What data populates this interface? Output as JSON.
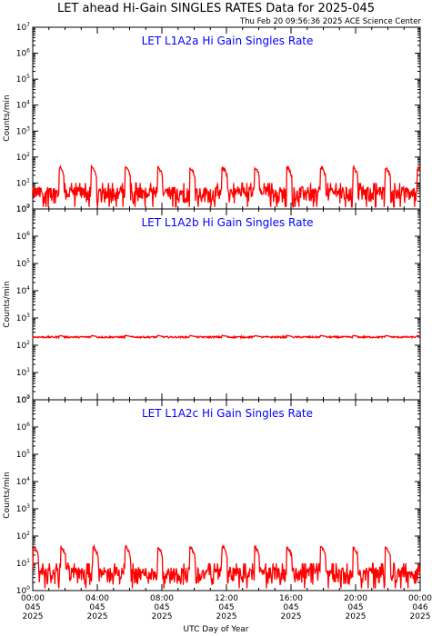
{
  "title": "LET ahead Hi-Gain SINGLES RATES Data for 2025-045",
  "timestamp": "Thu Feb 20 09:56:36 2025 ACE Science Center",
  "xlabel": "UTC Day of Year",
  "colors": {
    "data": "#ff0000",
    "title": "#0000ff",
    "axes": "#000000"
  },
  "x_ticks": [
    [
      "00:00",
      "045",
      "2025"
    ],
    [
      "04:00",
      "045",
      "2025"
    ],
    [
      "08:00",
      "045",
      "2025"
    ],
    [
      "12:00",
      "045",
      "2025"
    ],
    [
      "16:00",
      "045",
      "2025"
    ],
    [
      "20:00",
      "045",
      "2025"
    ],
    [
      "00:00",
      "046",
      "2025"
    ]
  ],
  "chart_data": [
    {
      "type": "line",
      "title": "LET L1A2a Hi Gain Singles Rate",
      "ylabel": "Counts/min",
      "yscale": "log",
      "ylim": [
        1,
        10000000
      ],
      "xlim": [
        0,
        24
      ],
      "x_unit": "hours UTC, day 045",
      "series": [
        {
          "baseline": 4,
          "spike_peak": 45,
          "spike_times": [
            1.7,
            3.7,
            5.8,
            7.8,
            9.8,
            11.8,
            13.8,
            15.8,
            17.9,
            19.9,
            21.9,
            23.9
          ]
        }
      ]
    },
    {
      "type": "line",
      "title": "LET L1A2b Hi Gain Singles Rate",
      "ylabel": "Counts/min",
      "yscale": "log",
      "ylim": [
        1,
        10000000
      ],
      "xlim": [
        0,
        24
      ],
      "x_unit": "hours UTC, day 045",
      "series": [
        {
          "baseline": 200,
          "spike_peak": 230,
          "spike_times": [
            1.7,
            3.7,
            5.8,
            7.8,
            9.8,
            11.8,
            13.8,
            15.8,
            17.9,
            19.9,
            21.9,
            23.9
          ]
        }
      ]
    },
    {
      "type": "line",
      "title": "LET L1A2c Hi Gain Singles Rate",
      "ylabel": "Counts/min",
      "yscale": "log",
      "ylim": [
        1,
        10000000
      ],
      "xlim": [
        0,
        24
      ],
      "x_unit": "hours UTC, day 045",
      "series": [
        {
          "baseline": 4,
          "spike_peak": 45,
          "spike_times": [
            0.1,
            1.8,
            3.8,
            5.8,
            7.8,
            9.8,
            11.8,
            13.8,
            15.8,
            17.9,
            19.9,
            21.9
          ]
        }
      ]
    }
  ]
}
